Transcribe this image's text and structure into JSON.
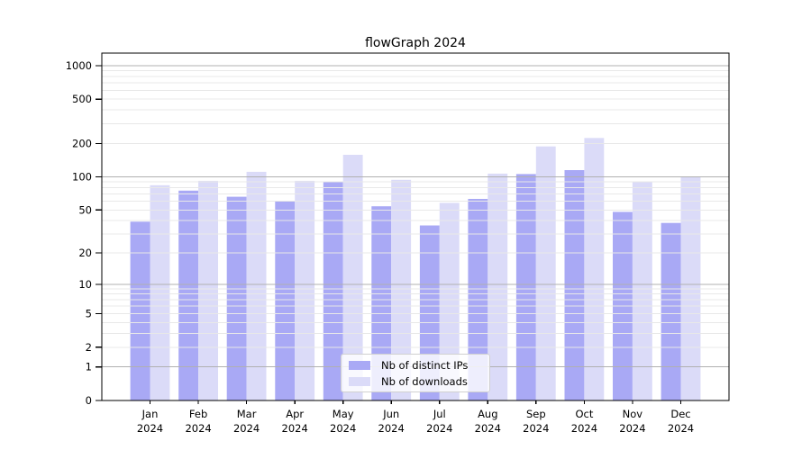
{
  "chart_data": {
    "type": "bar",
    "title": "flowGraph 2024",
    "categories": [
      "Jan",
      "Feb",
      "Mar",
      "Apr",
      "May",
      "Jun",
      "Jul",
      "Aug",
      "Sep",
      "Oct",
      "Nov",
      "Dec"
    ],
    "category_year": "2024",
    "series": [
      {
        "name": "Nb of distinct IPs",
        "color": "#a9a9f5",
        "values": [
          39,
          75,
          66,
          60,
          91,
          54,
          36,
          63,
          106,
          115,
          48,
          38
        ]
      },
      {
        "name": "Nb of downloads",
        "color": "#dbdbf8",
        "values": [
          84,
          92,
          111,
          92,
          158,
          94,
          58,
          107,
          188,
          224,
          91,
          100
        ]
      }
    ],
    "xlabel": "",
    "ylabel": "",
    "y_scale": "log1p",
    "y_ticks": [
      0,
      1,
      2,
      5,
      10,
      20,
      50,
      100,
      200,
      500,
      1000
    ],
    "y_major_gridlines": [
      1,
      10,
      100,
      1000
    ],
    "y_minor_gridlines": [
      2,
      3,
      4,
      5,
      6,
      7,
      8,
      9,
      20,
      30,
      40,
      50,
      60,
      70,
      80,
      90,
      200,
      300,
      400,
      500,
      600,
      700,
      800,
      900
    ],
    "ylim": [
      0,
      1300
    ],
    "grid": "horizontal, drawn over bars",
    "legend_position": "lower center inside plot"
  },
  "colors": {
    "background": "#ffffff",
    "bar_distinct_ips": "#a9a9f5",
    "bar_downloads": "#dbdbf8",
    "major_grid": "#b0b0b0",
    "minor_grid": "#e8e8e8",
    "axis": "#000000",
    "tick_label": "#000000",
    "legend_border": "#d0d0d0"
  }
}
